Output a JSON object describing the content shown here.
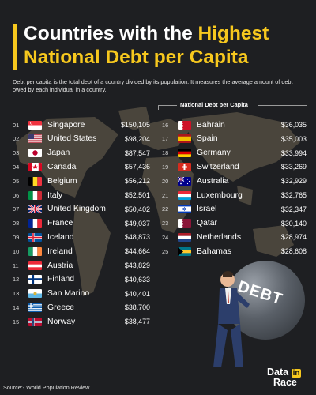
{
  "title": {
    "line1_white": "Countries with the ",
    "line1_yellow": "Highest",
    "line2": "National Debt per Capita"
  },
  "description": "Debt per capita is the total debt of a country divided by its population. It measures the average amount of debt owed by each individual in a country.",
  "column_header": "National Debt per Capita",
  "source": "Source:- World Population Review",
  "logo": {
    "word1": "Data",
    "word2": "in",
    "word3": "Race"
  },
  "illustration": {
    "ball_text": "DEBT"
  },
  "colors": {
    "accent": "#f7c81e",
    "background": "#1e1f22",
    "map": "#8a7d66"
  },
  "chart_data": {
    "type": "table",
    "title": "Countries with the Highest National Debt per Capita",
    "column_header": "National Debt per Capita",
    "unit": "USD",
    "rows": [
      {
        "rank": "01",
        "country": "Singapore",
        "value": "$150,105",
        "flag": "sg"
      },
      {
        "rank": "02",
        "country": "United States",
        "value": "$98,204",
        "flag": "us"
      },
      {
        "rank": "03",
        "country": "Japan",
        "value": "$87,547",
        "flag": "jp"
      },
      {
        "rank": "04",
        "country": "Canada",
        "value": "$57,436",
        "flag": "ca"
      },
      {
        "rank": "05",
        "country": "Belgium",
        "value": "$56,212",
        "flag": "be"
      },
      {
        "rank": "06",
        "country": "Italy",
        "value": "$52,501",
        "flag": "it"
      },
      {
        "rank": "07",
        "country": "United Kingdom",
        "value": "$50,402",
        "flag": "gb"
      },
      {
        "rank": "08",
        "country": "France",
        "value": "$49,037",
        "flag": "fr"
      },
      {
        "rank": "09",
        "country": "Iceland",
        "value": "$48,873",
        "flag": "is"
      },
      {
        "rank": "10",
        "country": "Ireland",
        "value": "$44,664",
        "flag": "ie"
      },
      {
        "rank": "11",
        "country": "Austria",
        "value": "$43,829",
        "flag": "at"
      },
      {
        "rank": "12",
        "country": "Finland",
        "value": "$40,633",
        "flag": "fi"
      },
      {
        "rank": "13",
        "country": "San Marino",
        "value": "$40,401",
        "flag": "sm"
      },
      {
        "rank": "14",
        "country": "Greece",
        "value": "$38,700",
        "flag": "gr"
      },
      {
        "rank": "15",
        "country": "Norway",
        "value": "$38,477",
        "flag": "no"
      },
      {
        "rank": "16",
        "country": "Bahrain",
        "value": "$36,035",
        "flag": "bh"
      },
      {
        "rank": "17",
        "country": "Spain",
        "value": "$35,003",
        "flag": "es"
      },
      {
        "rank": "18",
        "country": "Germany",
        "value": "$33,994",
        "flag": "de"
      },
      {
        "rank": "19",
        "country": "Switzerland",
        "value": "$33,269",
        "flag": "ch"
      },
      {
        "rank": "20",
        "country": "Australia",
        "value": "$32,929",
        "flag": "au"
      },
      {
        "rank": "21",
        "country": "Luxembourg",
        "value": "$32,765",
        "flag": "lu"
      },
      {
        "rank": "22",
        "country": "Israel",
        "value": "$32,347",
        "flag": "il"
      },
      {
        "rank": "23",
        "country": "Qatar",
        "value": "$30,140",
        "flag": "qa"
      },
      {
        "rank": "24",
        "country": "Netherlands",
        "value": "$28,974",
        "flag": "nl"
      },
      {
        "rank": "25",
        "country": "Bahamas",
        "value": "$28,608",
        "flag": "bs"
      }
    ]
  }
}
